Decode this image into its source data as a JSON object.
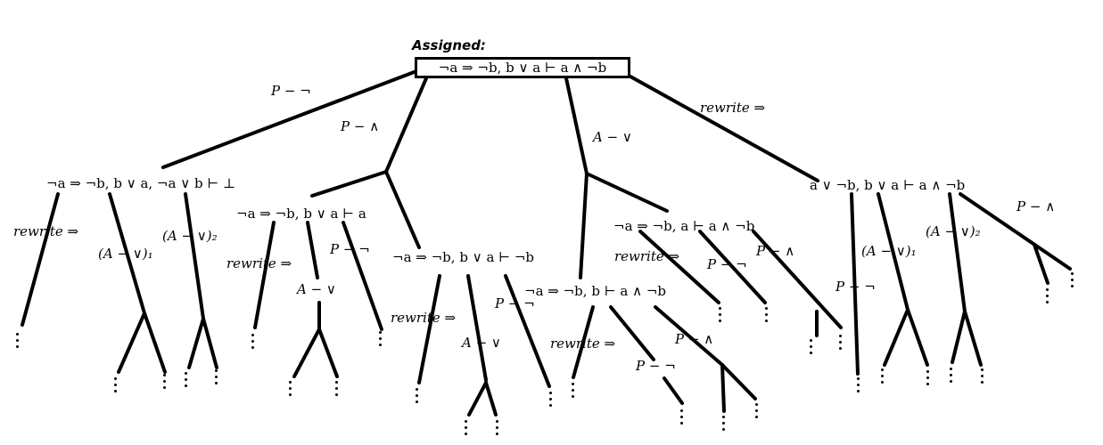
{
  "assigned_label": "Assigned:",
  "root_sequent": "¬a ⇒ ¬b, b ∨ a ⊢ a ∧ ¬b",
  "rules": {
    "p_neg": "P − ¬",
    "p_and": "P − ∧",
    "a_or": "A − ∨",
    "rewrite_imp": "rewrite ⇒",
    "a_or_1": "(A − ∨)₁",
    "a_or_2": "(A − ∨)₂"
  },
  "sequents": {
    "s1": "¬a ⇒ ¬b, b ∨ a, ¬a ∨ b ⊢ ⊥",
    "s2": "¬a ⇒ ¬b, b ∨ a ⊢ a",
    "s3": "¬a ⇒ ¬b, b ∨ a ⊢ ¬b",
    "s4": "¬a ⇒ ¬b, a ⊢ a ∧ ¬b",
    "s5": "¬a ⇒ ¬b, b ⊢ a ∧ ¬b",
    "s6": "a ∨ ¬b, b ∨ a ⊢ a ∧ ¬b"
  },
  "continuation": "⋮"
}
